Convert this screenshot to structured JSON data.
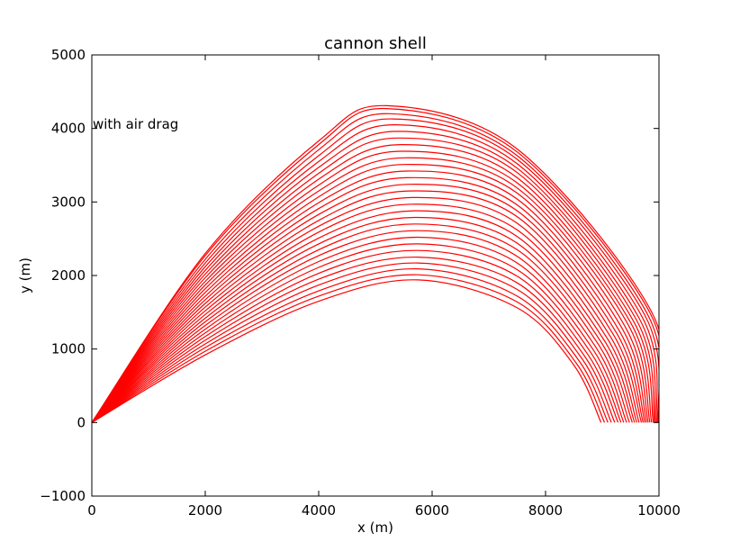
{
  "chart_data": {
    "type": "line",
    "title": "cannon shell",
    "xlabel": "x (m)",
    "ylabel": "y (m)",
    "xlim": [
      0,
      10000
    ],
    "ylim": [
      -1000,
      5000
    ],
    "xticks": [
      0,
      2000,
      4000,
      6000,
      8000,
      10000
    ],
    "yticks": [
      -1000,
      0,
      1000,
      2000,
      3000,
      4000,
      5000
    ],
    "xtick_labels": [
      "0",
      "2000",
      "4000",
      "6000",
      "8000",
      "10000"
    ],
    "ytick_labels": [
      "−1000",
      "0",
      "1000",
      "2000",
      "3000",
      "4000",
      "5000"
    ],
    "annotation": {
      "text": "with air drag",
      "x": 0,
      "y": 4000
    },
    "grid": false,
    "line_color": "#ff0000",
    "series": [
      {
        "values": [
          [
            0,
            0
          ],
          [
            2000,
            920
          ],
          [
            4000,
            1650
          ],
          [
            5750,
            1940
          ],
          [
            7500,
            1560
          ],
          [
            8500,
            780
          ],
          [
            8980,
            0
          ]
        ]
      },
      {
        "values": [
          [
            0,
            0
          ],
          [
            2000,
            970
          ],
          [
            4000,
            1720
          ],
          [
            5750,
            2010
          ],
          [
            7500,
            1640
          ],
          [
            8550,
            800
          ],
          [
            9040,
            0
          ]
        ]
      },
      {
        "values": [
          [
            0,
            0
          ],
          [
            2000,
            1020
          ],
          [
            4000,
            1790
          ],
          [
            5750,
            2090
          ],
          [
            7500,
            1720
          ],
          [
            8600,
            830
          ],
          [
            9100,
            0
          ]
        ]
      },
      {
        "values": [
          [
            0,
            0
          ],
          [
            2000,
            1070
          ],
          [
            4000,
            1870
          ],
          [
            5750,
            2170
          ],
          [
            7500,
            1810
          ],
          [
            8650,
            860
          ],
          [
            9160,
            0
          ]
        ]
      },
      {
        "values": [
          [
            0,
            0
          ],
          [
            2000,
            1120
          ],
          [
            4000,
            1950
          ],
          [
            5750,
            2250
          ],
          [
            7500,
            1900
          ],
          [
            8700,
            890
          ],
          [
            9220,
            0
          ]
        ]
      },
      {
        "values": [
          [
            0,
            0
          ],
          [
            2000,
            1170
          ],
          [
            4000,
            2030
          ],
          [
            5750,
            2340
          ],
          [
            7500,
            1990
          ],
          [
            8750,
            920
          ],
          [
            9280,
            0
          ]
        ]
      },
      {
        "values": [
          [
            0,
            0
          ],
          [
            2000,
            1220
          ],
          [
            4000,
            2110
          ],
          [
            5750,
            2430
          ],
          [
            7500,
            2080
          ],
          [
            8800,
            950
          ],
          [
            9330,
            0
          ]
        ]
      },
      {
        "values": [
          [
            0,
            0
          ],
          [
            2000,
            1270
          ],
          [
            4000,
            2190
          ],
          [
            5750,
            2520
          ],
          [
            7500,
            2170
          ],
          [
            8850,
            980
          ],
          [
            9380,
            0
          ]
        ]
      },
      {
        "values": [
          [
            0,
            0
          ],
          [
            2000,
            1320
          ],
          [
            4000,
            2270
          ],
          [
            5750,
            2610
          ],
          [
            7500,
            2260
          ],
          [
            8900,
            1010
          ],
          [
            9430,
            0
          ]
        ]
      },
      {
        "values": [
          [
            0,
            0
          ],
          [
            2000,
            1370
          ],
          [
            4000,
            2350
          ],
          [
            5700,
            2700
          ],
          [
            7500,
            2350
          ],
          [
            8950,
            1040
          ],
          [
            9480,
            0
          ]
        ]
      },
      {
        "values": [
          [
            0,
            0
          ],
          [
            2000,
            1420
          ],
          [
            4000,
            2430
          ],
          [
            5700,
            2790
          ],
          [
            7500,
            2440
          ],
          [
            9000,
            1070
          ],
          [
            9530,
            0
          ]
        ]
      },
      {
        "values": [
          [
            0,
            0
          ],
          [
            2000,
            1470
          ],
          [
            4000,
            2510
          ],
          [
            5700,
            2880
          ],
          [
            7500,
            2530
          ],
          [
            9050,
            1100
          ],
          [
            9570,
            0
          ]
        ]
      },
      {
        "values": [
          [
            0,
            0
          ],
          [
            2000,
            1520
          ],
          [
            4000,
            2590
          ],
          [
            5650,
            2970
          ],
          [
            7500,
            2620
          ],
          [
            9100,
            1130
          ],
          [
            9610,
            0
          ]
        ]
      },
      {
        "values": [
          [
            0,
            0
          ],
          [
            2000,
            1570
          ],
          [
            4000,
            2670
          ],
          [
            5650,
            3060
          ],
          [
            7500,
            2710
          ],
          [
            9150,
            1160
          ],
          [
            9650,
            0
          ]
        ]
      },
      {
        "values": [
          [
            0,
            0
          ],
          [
            2000,
            1620
          ],
          [
            4000,
            2750
          ],
          [
            5600,
            3150
          ],
          [
            7500,
            2800
          ],
          [
            9200,
            1190
          ],
          [
            9690,
            0
          ]
        ]
      },
      {
        "values": [
          [
            0,
            0
          ],
          [
            2000,
            1670
          ],
          [
            4000,
            2830
          ],
          [
            5600,
            3240
          ],
          [
            7500,
            2880
          ],
          [
            9250,
            1220
          ],
          [
            9720,
            0
          ]
        ]
      },
      {
        "values": [
          [
            0,
            0
          ],
          [
            2000,
            1720
          ],
          [
            4000,
            2910
          ],
          [
            5550,
            3330
          ],
          [
            7500,
            2960
          ],
          [
            9300,
            1250
          ],
          [
            9750,
            0
          ]
        ]
      },
      {
        "values": [
          [
            0,
            0
          ],
          [
            2000,
            1770
          ],
          [
            4000,
            2990
          ],
          [
            5550,
            3420
          ],
          [
            7500,
            3040
          ],
          [
            9350,
            1280
          ],
          [
            9780,
            0
          ]
        ]
      },
      {
        "values": [
          [
            0,
            0
          ],
          [
            2000,
            1820
          ],
          [
            4000,
            3070
          ],
          [
            5500,
            3510
          ],
          [
            7500,
            3120
          ],
          [
            9400,
            1310
          ],
          [
            9810,
            0
          ]
        ]
      },
      {
        "values": [
          [
            0,
            0
          ],
          [
            2000,
            1870
          ],
          [
            4000,
            3150
          ],
          [
            5500,
            3600
          ],
          [
            7500,
            3190
          ],
          [
            9450,
            1340
          ],
          [
            9840,
            0
          ]
        ]
      },
      {
        "values": [
          [
            0,
            0
          ],
          [
            2000,
            1920
          ],
          [
            4000,
            3230
          ],
          [
            5450,
            3690
          ],
          [
            7500,
            3260
          ],
          [
            9500,
            1360
          ],
          [
            9870,
            0
          ]
        ]
      },
      {
        "values": [
          [
            0,
            0
          ],
          [
            2000,
            1970
          ],
          [
            4000,
            3310
          ],
          [
            5450,
            3780
          ],
          [
            7500,
            3330
          ],
          [
            9550,
            1380
          ],
          [
            9900,
            0
          ]
        ]
      },
      {
        "values": [
          [
            0,
            0
          ],
          [
            2000,
            2020
          ],
          [
            4000,
            3390
          ],
          [
            5400,
            3870
          ],
          [
            7500,
            3400
          ],
          [
            9600,
            1400
          ],
          [
            9920,
            0
          ]
        ]
      },
      {
        "values": [
          [
            0,
            0
          ],
          [
            2000,
            2070
          ],
          [
            4000,
            3470
          ],
          [
            5400,
            3960
          ],
          [
            7500,
            3460
          ],
          [
            9650,
            1420
          ],
          [
            9940,
            0
          ]
        ]
      },
      {
        "values": [
          [
            0,
            0
          ],
          [
            2000,
            2120
          ],
          [
            4000,
            3550
          ],
          [
            5350,
            4050
          ],
          [
            7500,
            3520
          ],
          [
            9700,
            1440
          ],
          [
            9960,
            0
          ]
        ]
      },
      {
        "values": [
          [
            0,
            0
          ],
          [
            2000,
            2170
          ],
          [
            4000,
            3630
          ],
          [
            5300,
            4130
          ],
          [
            7500,
            3580
          ],
          [
            9750,
            1460
          ],
          [
            9980,
            0
          ]
        ]
      },
      {
        "values": [
          [
            0,
            0
          ],
          [
            2000,
            2220
          ],
          [
            4000,
            3710
          ],
          [
            5250,
            4200
          ],
          [
            7500,
            3630
          ],
          [
            9800,
            1470
          ],
          [
            9990,
            0
          ]
        ]
      },
      {
        "values": [
          [
            0,
            0
          ],
          [
            2000,
            2270
          ],
          [
            4000,
            3780
          ],
          [
            5200,
            4270
          ],
          [
            7500,
            3680
          ],
          [
            9850,
            1480
          ],
          [
            10000,
            0
          ]
        ]
      },
      {
        "values": [
          [
            0,
            0
          ],
          [
            2000,
            2300
          ],
          [
            4000,
            3830
          ],
          [
            5200,
            4310
          ],
          [
            7500,
            3720
          ],
          [
            9880,
            1490
          ],
          [
            10000,
            0
          ]
        ]
      }
    ]
  }
}
